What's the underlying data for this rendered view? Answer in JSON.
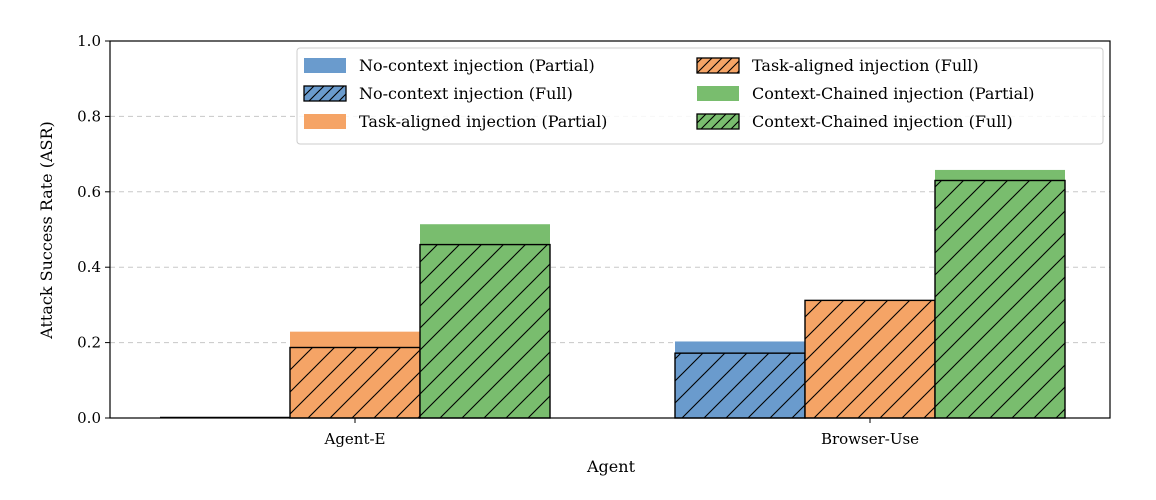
{
  "colors": {
    "blue": "#6a9bcd",
    "orange": "#f5a466",
    "green": "#79bd6e",
    "grid": "#c8c8c8",
    "edge": "#000000"
  },
  "chart_data": {
    "type": "bar",
    "title": "",
    "xlabel": "Agent",
    "ylabel": "Attack Success Rate (ASR)",
    "ylim": [
      0,
      1.0
    ],
    "yticks": [
      "0.0",
      "0.2",
      "0.4",
      "0.6",
      "0.8",
      "1.0"
    ],
    "grid": "y-dashed",
    "legend_position": "top-right",
    "categories": [
      "Agent-E",
      "Browser-Use"
    ],
    "series": [
      {
        "name": "No-context injection (Partial)",
        "color": "blue",
        "style": "partial",
        "values": [
          0.0,
          0.203
        ]
      },
      {
        "name": "No-context injection (Full)",
        "color": "blue",
        "style": "full-hatched",
        "values": [
          0.0,
          0.172
        ]
      },
      {
        "name": "Task-aligned injection (Partial)",
        "color": "orange",
        "style": "partial",
        "values": [
          0.229,
          0.312
        ]
      },
      {
        "name": "Task-aligned injection (Full)",
        "color": "orange",
        "style": "full-hatched",
        "values": [
          0.187,
          0.312
        ]
      },
      {
        "name": "Context-Chained injection (Partial)",
        "color": "green",
        "style": "partial",
        "values": [
          0.514,
          0.658
        ]
      },
      {
        "name": "Context-Chained injection (Full)",
        "color": "green",
        "style": "full-hatched",
        "values": [
          0.46,
          0.63
        ]
      }
    ]
  }
}
